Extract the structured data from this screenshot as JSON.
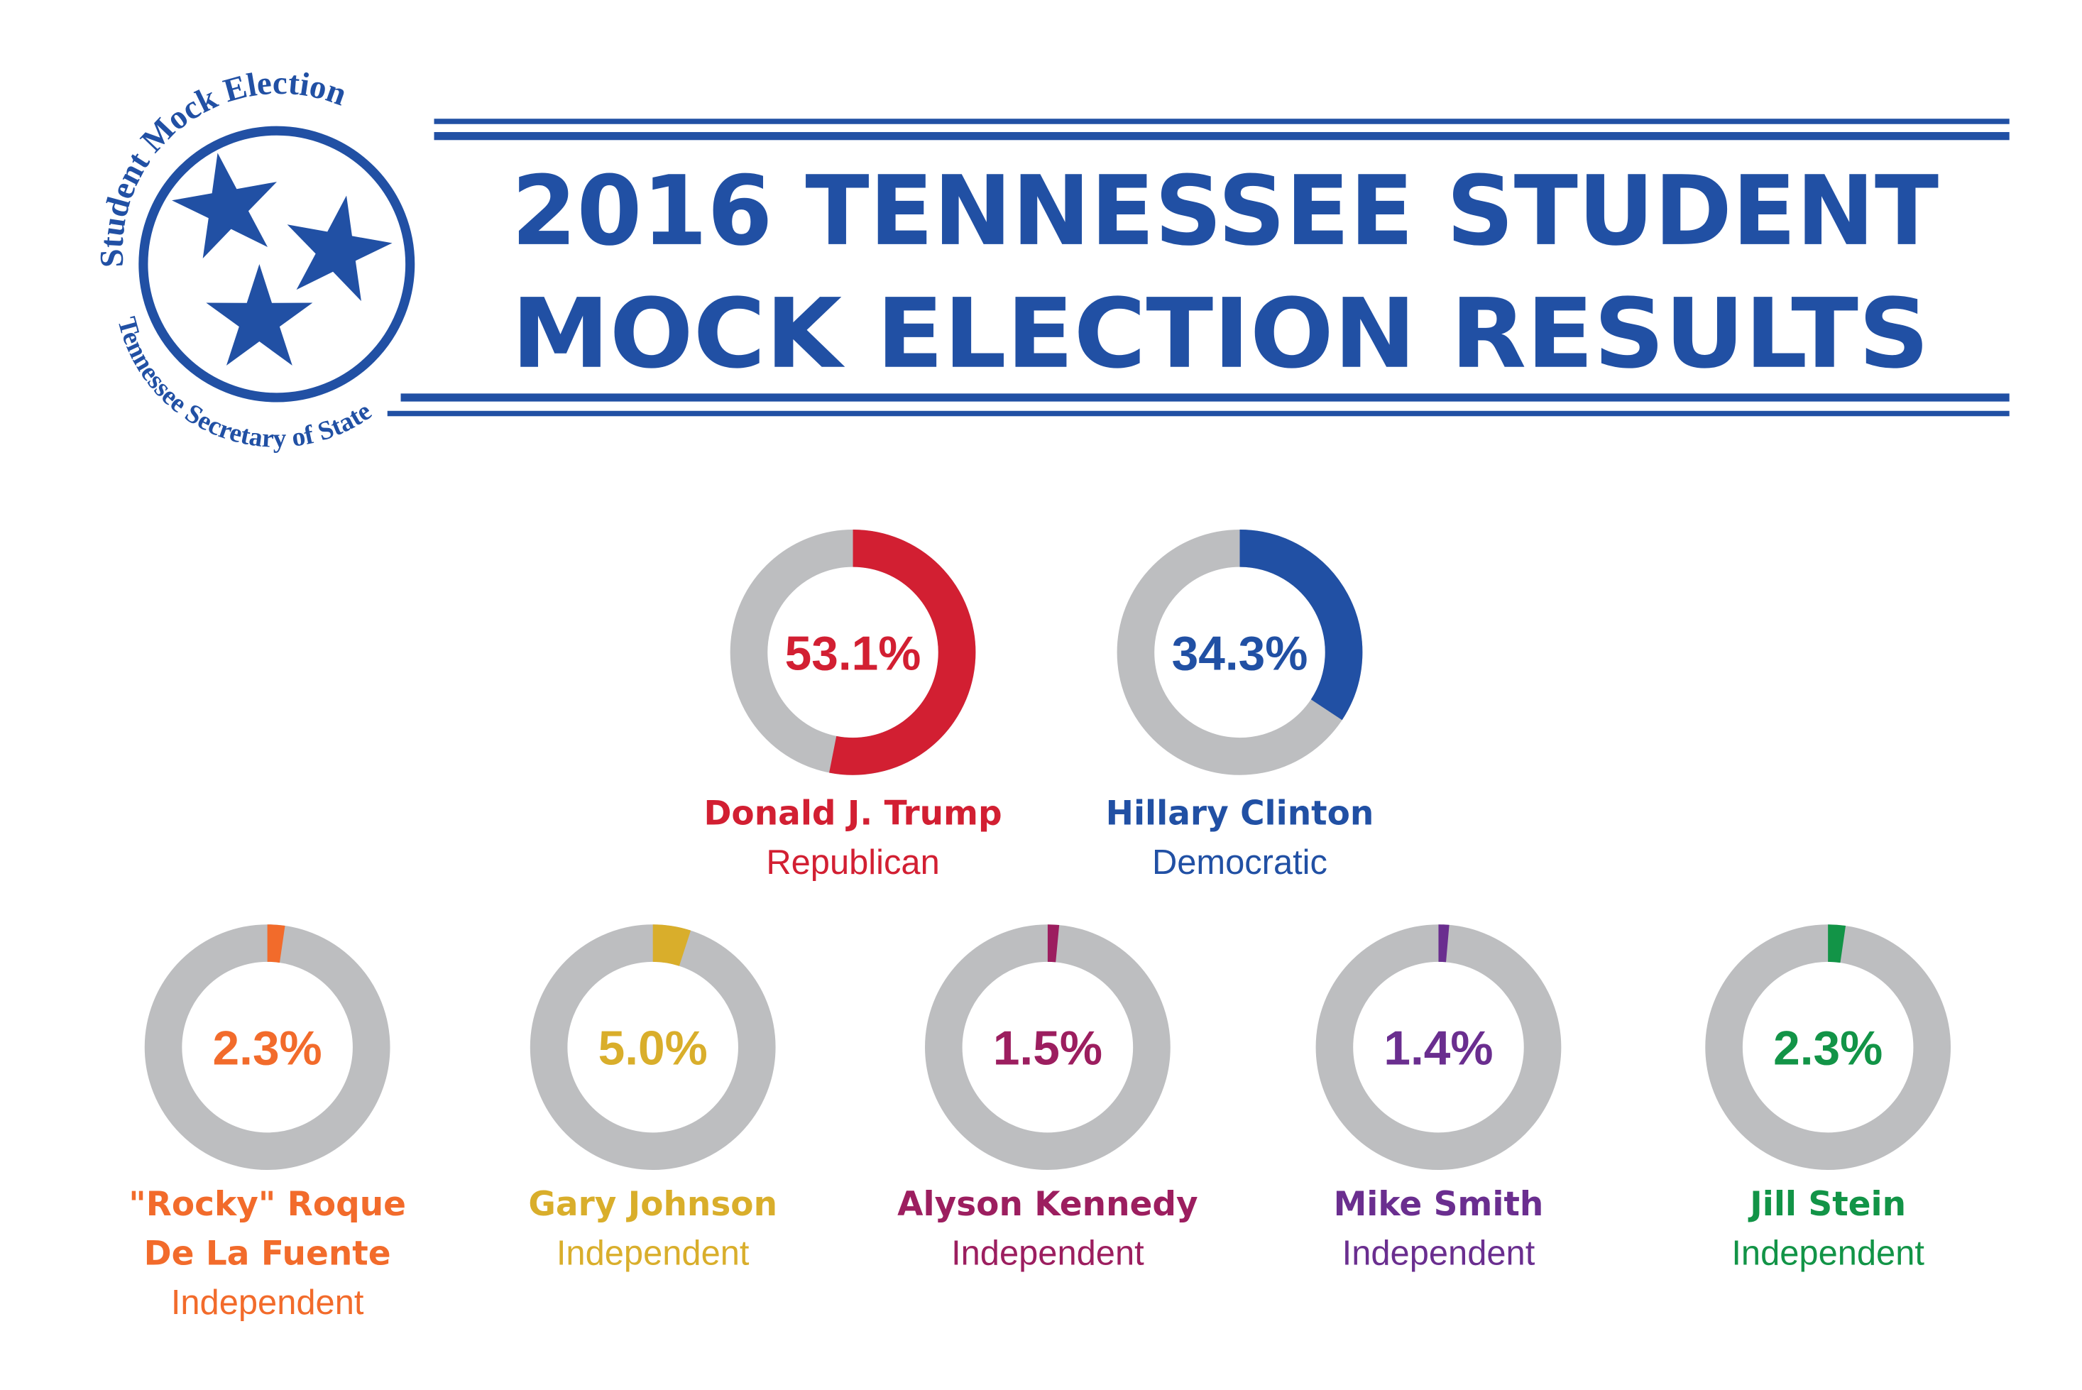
{
  "header": {
    "title_line1": "2016 TENNESSEE STUDENT",
    "title_line2": "MOCK ELECTION RESULTS",
    "logo": {
      "top_text": "Student Mock Election",
      "bottom_text": "Tennessee Secretary of State",
      "icon": "tri-star-icon"
    },
    "accent_color": "#2150a4"
  },
  "chart_data": {
    "type": "donut",
    "remainder_color": "#bdbec0",
    "candidates": [
      {
        "name": "Donald J. Trump",
        "party": "Republican",
        "value": 53.1,
        "label": "53.1%",
        "color": "#d21f32"
      },
      {
        "name": "Hillary Clinton",
        "party": "Democratic",
        "value": 34.3,
        "label": "34.3%",
        "color": "#2150a4"
      },
      {
        "name": "\"Rocky\" Roque",
        "name_line2": "De La Fuente",
        "party": "Independent",
        "value": 2.3,
        "label": "2.3%",
        "color": "#f26b2b"
      },
      {
        "name": "Gary Johnson",
        "party": "Independent",
        "value": 5.0,
        "label": "5.0%",
        "color": "#d9ae2b"
      },
      {
        "name": "Alyson Kennedy",
        "party": "Independent",
        "value": 1.5,
        "label": "1.5%",
        "color": "#9c1e5f"
      },
      {
        "name": "Mike Smith",
        "party": "Independent",
        "value": 1.4,
        "label": "1.4%",
        "color": "#6a2e8f"
      },
      {
        "name": "Jill Stein",
        "party": "Independent",
        "value": 2.3,
        "label": "2.3%",
        "color": "#129447"
      }
    ]
  }
}
